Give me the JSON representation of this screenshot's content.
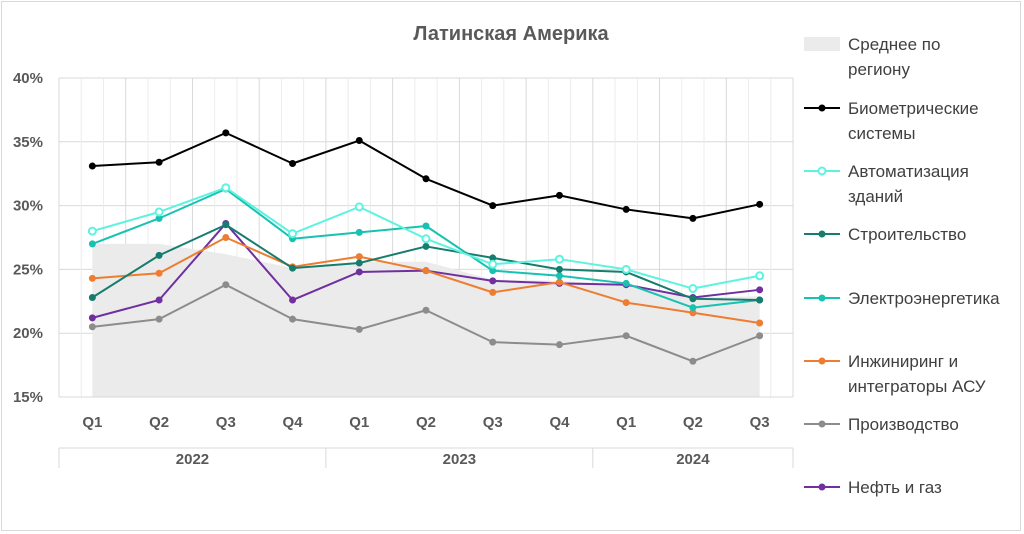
{
  "chart_data": {
    "type": "line",
    "title": "Латинская Америка",
    "y_ticks": [
      "15%",
      "20%",
      "25%",
      "30%",
      "35%",
      "40%"
    ],
    "ylim": [
      0.15,
      0.4
    ],
    "grid": true,
    "legend_position": "right",
    "categories": [
      "Q1",
      "Q2",
      "Q3",
      "Q4",
      "Q1",
      "Q2",
      "Q3",
      "Q4",
      "Q1",
      "Q2",
      "Q3"
    ],
    "years": [
      {
        "label": "2022",
        "span": [
          0,
          3
        ]
      },
      {
        "label": "2023",
        "span": [
          4,
          7
        ]
      },
      {
        "label": "2024",
        "span": [
          8,
          10
        ]
      }
    ],
    "area": {
      "name": "Среднее по регион­у",
      "legend_lines": [
        "Среднее по",
        "региону"
      ],
      "color": "#ebebeb",
      "values": [
        0.27,
        0.27,
        0.262,
        0.251,
        0.256,
        0.256,
        0.242,
        0.241,
        0.238,
        0.228,
        0.229
      ]
    },
    "series": [
      {
        "name": "Биометрические системы",
        "legend_lines": [
          "Биометрические",
          "системы"
        ],
        "color": "#000000",
        "hollow": false,
        "values": [
          0.331,
          0.334,
          0.357,
          0.333,
          0.351,
          0.321,
          0.3,
          0.308,
          0.297,
          0.29,
          0.301
        ]
      },
      {
        "name": "Автоматизация зданий",
        "legend_lines": [
          "Автоматизация",
          "зданий"
        ],
        "color": "#5ef2e0",
        "hollow": true,
        "values": [
          0.28,
          0.295,
          0.314,
          0.278,
          0.299,
          0.274,
          0.254,
          0.258,
          0.25,
          0.235,
          0.245
        ]
      },
      {
        "name": "Строительство",
        "legend_lines": [
          "Строительство"
        ],
        "color": "#167d6e",
        "hollow": false,
        "values": [
          0.228,
          0.261,
          0.285,
          0.251,
          0.255,
          0.268,
          0.259,
          0.25,
          0.248,
          0.227,
          0.226
        ]
      },
      {
        "name": "Электроэнергетика",
        "legend_lines": [
          "Электроэнергетика"
        ],
        "color": "#17c2b1",
        "hollow": false,
        "values": [
          0.27,
          0.29,
          0.313,
          0.274,
          0.279,
          0.284,
          0.249,
          0.245,
          0.239,
          0.22,
          0.226
        ]
      },
      {
        "name": "Инжиниринг и интеграторы АСУ",
        "legend_lines": [
          "Инжиниринг и",
          "интеграторы АСУ"
        ],
        "color": "#ed7d31",
        "hollow": false,
        "values": [
          0.243,
          0.247,
          0.275,
          0.252,
          0.26,
          0.249,
          0.232,
          0.24,
          0.224,
          0.216,
          0.208
        ]
      },
      {
        "name": "Производство",
        "legend_lines": [
          "Производство"
        ],
        "color": "#8c8c8c",
        "hollow": false,
        "values": [
          0.205,
          0.211,
          0.238,
          0.211,
          0.203,
          0.218,
          0.193,
          0.191,
          0.198,
          0.178,
          0.198
        ]
      },
      {
        "name": "Нефть и газ",
        "legend_lines": [
          "Нефть и газ"
        ],
        "color": "#7030a0",
        "hollow": false,
        "values": [
          0.212,
          0.226,
          0.286,
          0.226,
          0.248,
          0.249,
          0.241,
          0.239,
          0.238,
          0.228,
          0.234
        ]
      }
    ]
  }
}
